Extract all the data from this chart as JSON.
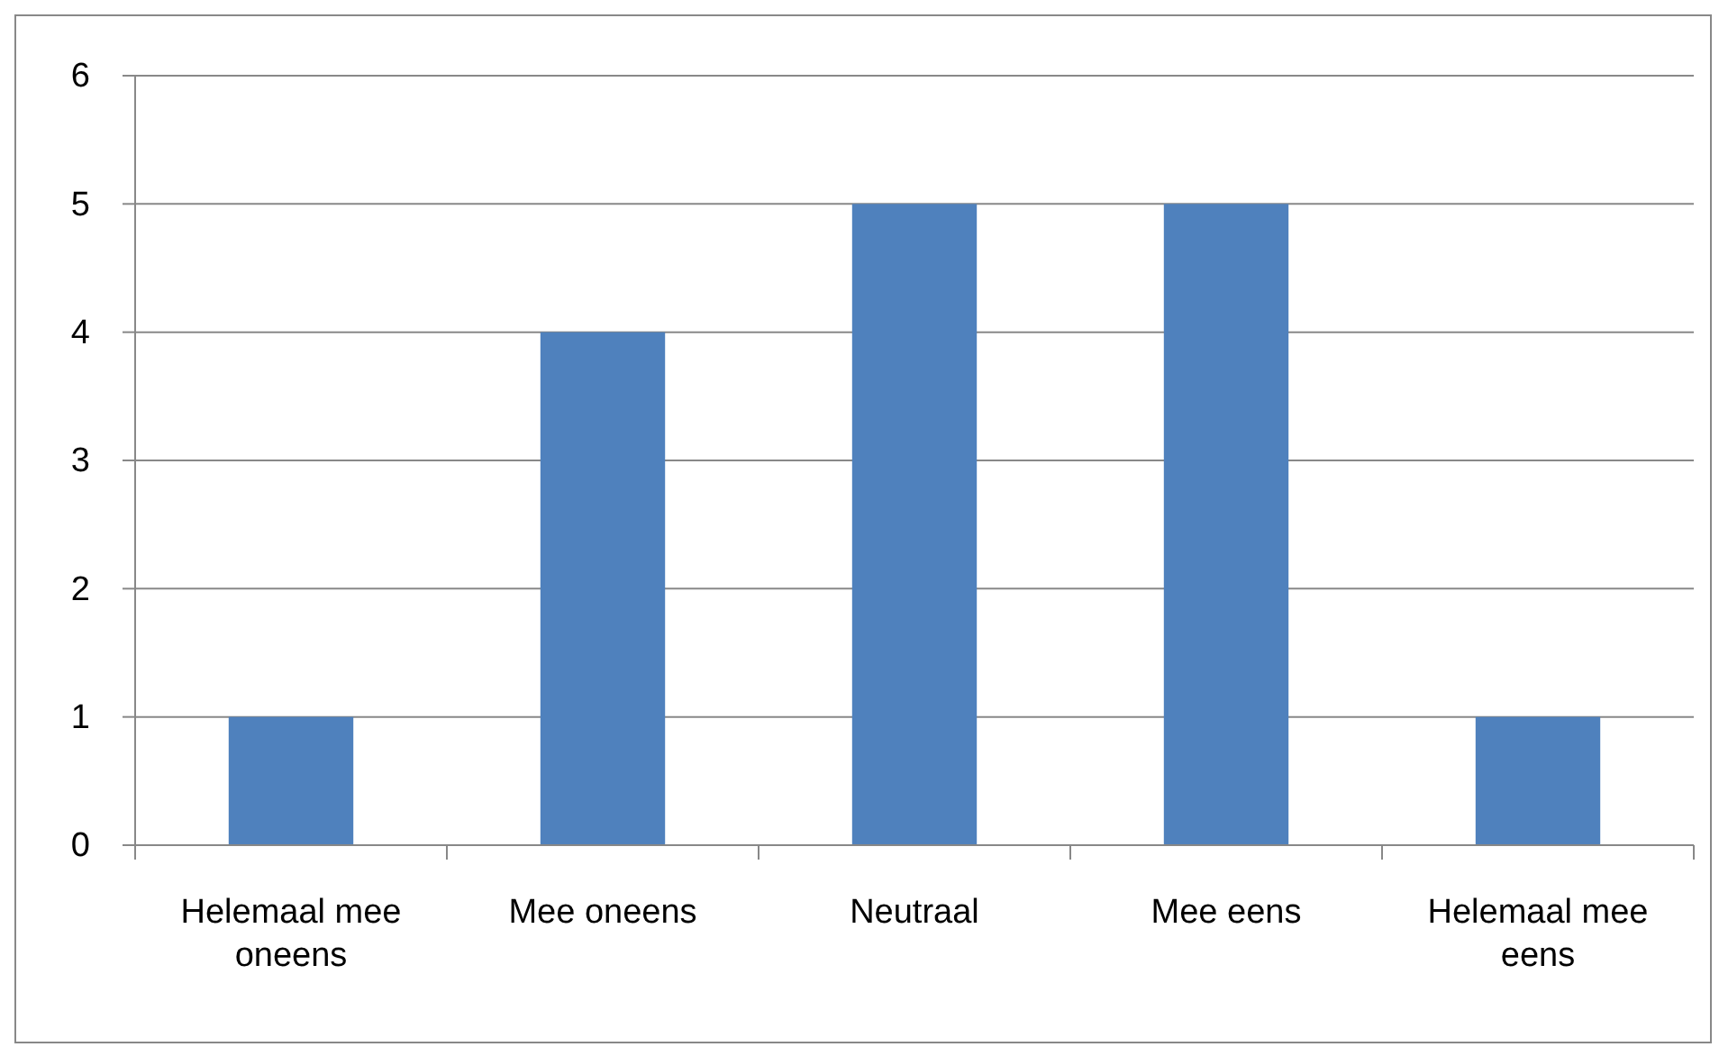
{
  "chart_data": {
    "type": "bar",
    "categories": [
      "Helemaal mee oneens",
      "Mee oneens",
      "Neutraal",
      "Mee eens",
      "Helemaal mee eens"
    ],
    "values": [
      1,
      4,
      5,
      5,
      1
    ],
    "color": "#4f81bd",
    "ylim": [
      0,
      6
    ],
    "yticks": [
      0,
      1,
      2,
      3,
      4,
      5,
      6
    ],
    "grid": "y"
  }
}
